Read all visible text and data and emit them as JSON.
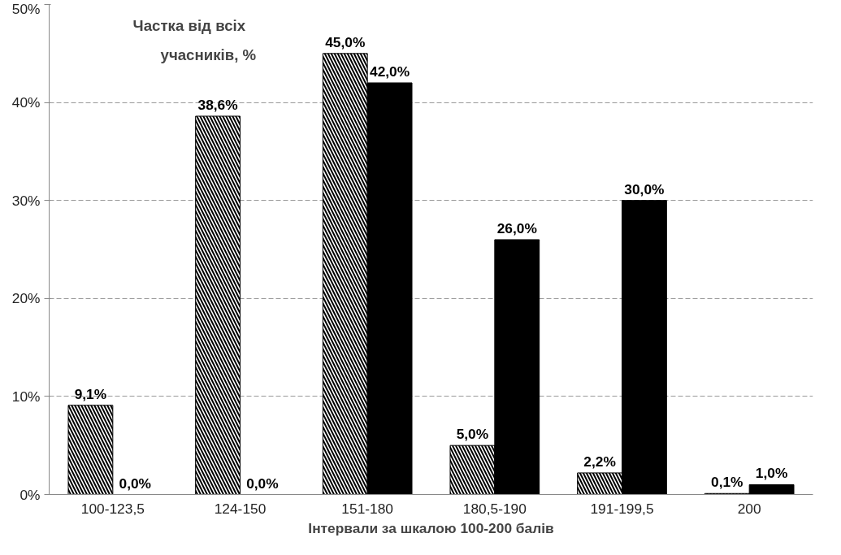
{
  "chart_data": {
    "type": "bar",
    "ylabel": "Частка від всіх учасників, %",
    "xlabel": "Інтервали за шкалою 100-200 балів",
    "categories": [
      "100-123,5",
      "124-150",
      "151-180",
      "180,5-190",
      "191-199,5",
      "200"
    ],
    "series": [
      {
        "color": "#ffffff",
        "values": [
          9.1,
          38.6,
          45.0,
          5.0,
          2.2,
          0.1
        ],
        "value_labels": [
          "9,1%",
          "38,6%",
          "45,0%",
          "5,0%",
          "2,2%",
          "0,1%"
        ]
      },
      {
        "color": "#000000",
        "values": [
          0.0,
          0.0,
          42.0,
          26.0,
          30.0,
          1.0
        ],
        "value_labels": [
          "0,0%",
          "0,0%",
          "42,0%",
          "26,0%",
          "30,0%",
          "1,0%"
        ]
      }
    ],
    "ylim": [
      0,
      50
    ],
    "yticks": [
      {
        "value": 0,
        "label": "0%"
      },
      {
        "value": 10,
        "label": "10%"
      },
      {
        "value": 20,
        "label": "20%"
      },
      {
        "value": 30,
        "label": "30%"
      },
      {
        "value": 40,
        "label": "40%"
      },
      {
        "value": 50,
        "label": "50%"
      }
    ],
    "grid": "y"
  }
}
